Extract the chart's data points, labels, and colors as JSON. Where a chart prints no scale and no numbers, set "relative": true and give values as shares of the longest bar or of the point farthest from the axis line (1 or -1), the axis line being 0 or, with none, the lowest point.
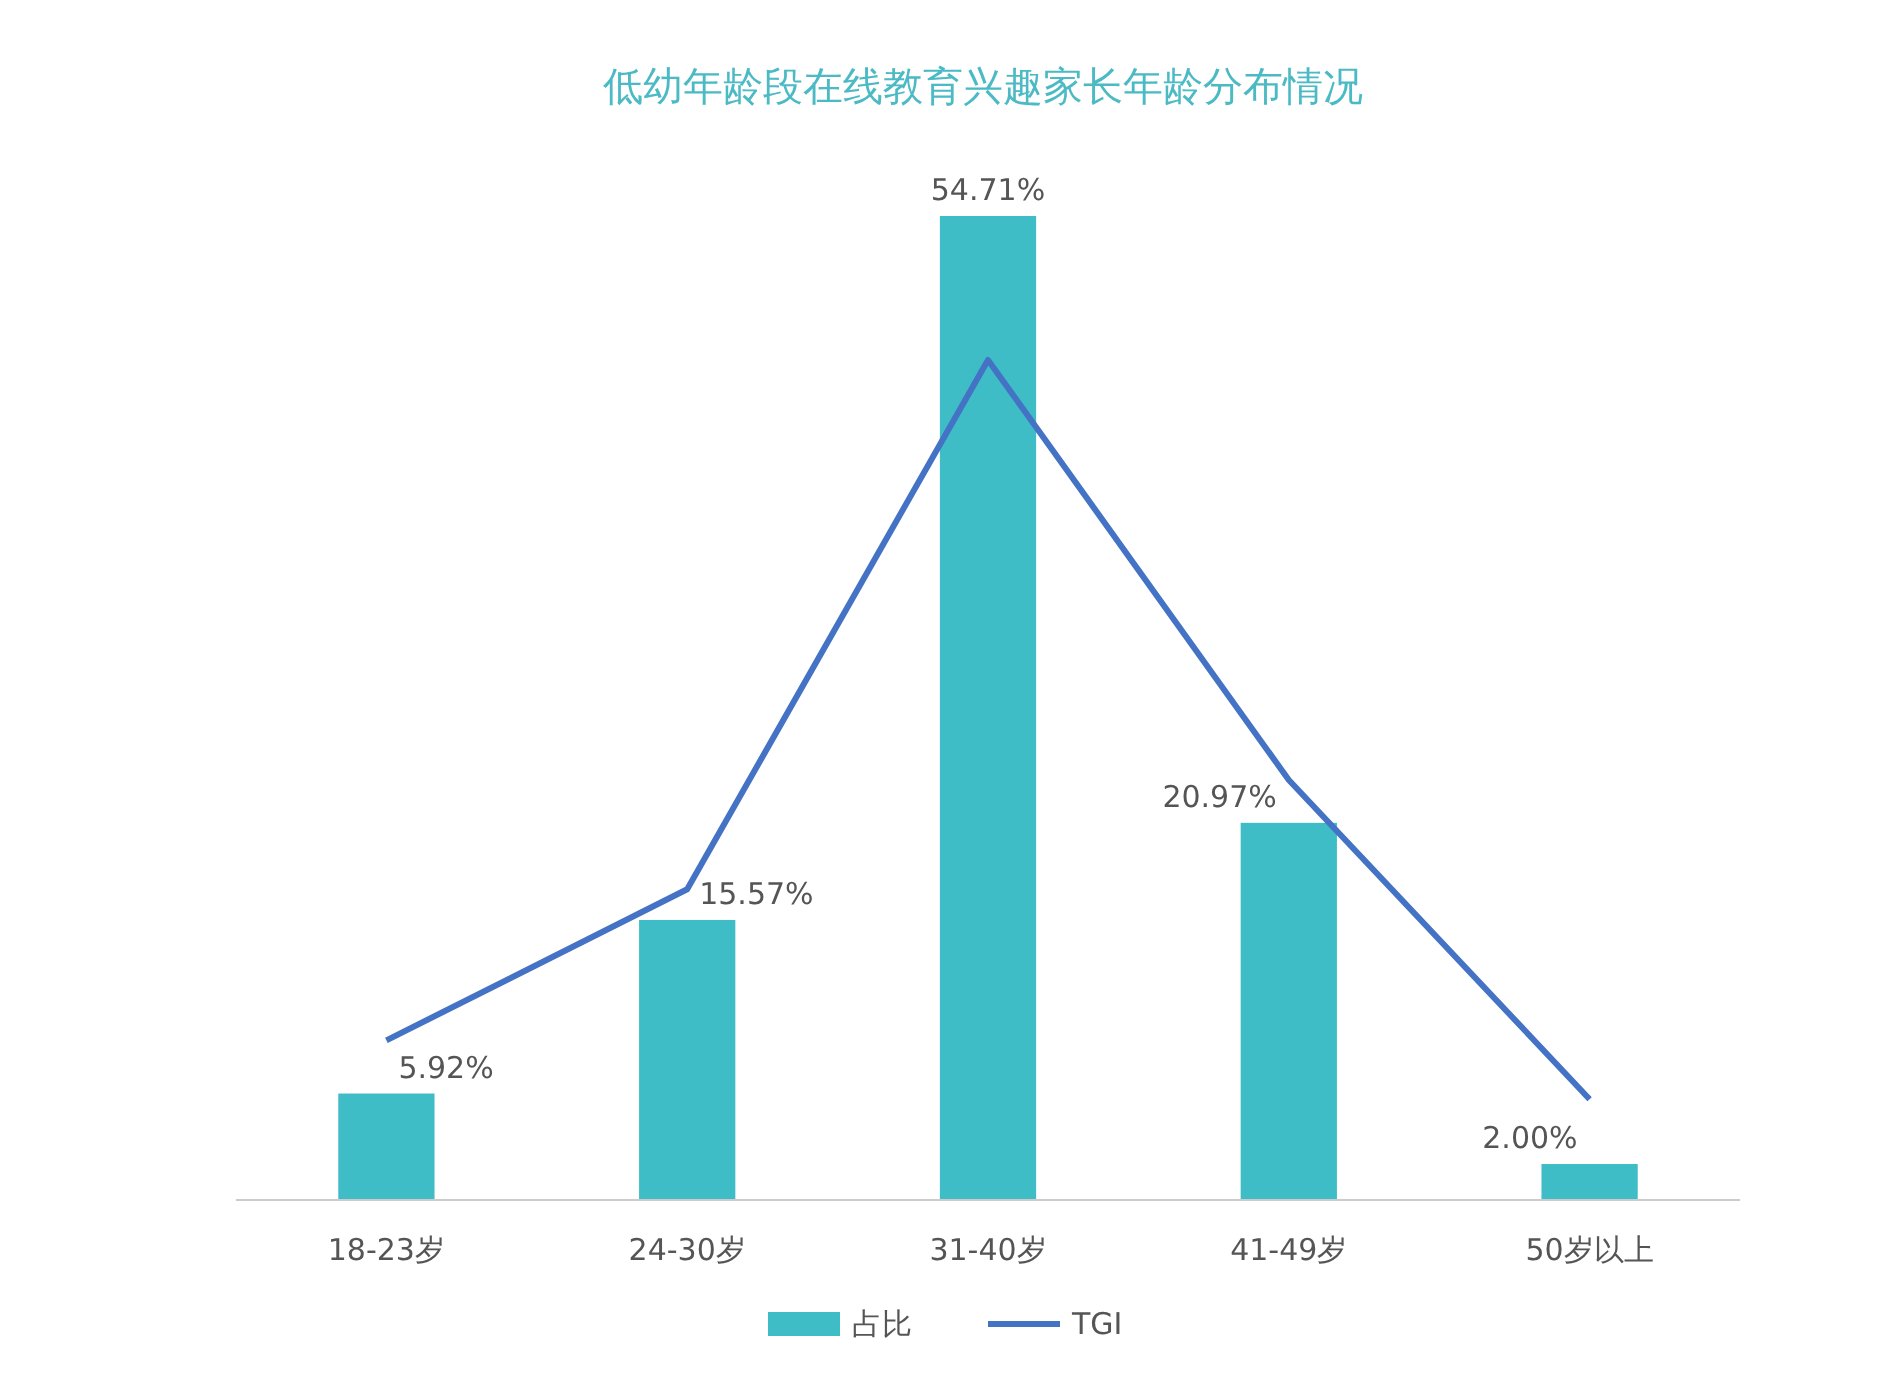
{
  "chart_data": [
    {
      "type": "bar",
      "title": "低幼年龄段在线教育兴趣家长年龄分布情况",
      "categories": [
        "18-23岁",
        "24-30岁",
        "31-40岁",
        "41-49岁",
        "50岁以上"
      ],
      "series": [
        {
          "name": "占比",
          "type": "bar",
          "color": "#3fbdc6",
          "values": [
            5.92,
            15.57,
            54.71,
            20.97,
            2.0
          ],
          "value_labels": [
            "5.92%",
            "15.57%",
            "54.71%",
            "20.97%",
            "2.00%"
          ]
        }
      ],
      "legend": "bottom",
      "grid": false
    },
    {
      "type": "line",
      "relative": true,
      "categories": [
        null,
        null,
        null,
        null,
        null
      ],
      "series": [
        {
          "name": "TGI",
          "color": "#4472c4",
          "values": [
            0.19,
            0.37,
            1,
            0.5,
            0.12
          ]
        }
      ],
      "legend": "bottom",
      "grid": false,
      "marker": "none",
      "line_style": "solid"
    }
  ]
}
